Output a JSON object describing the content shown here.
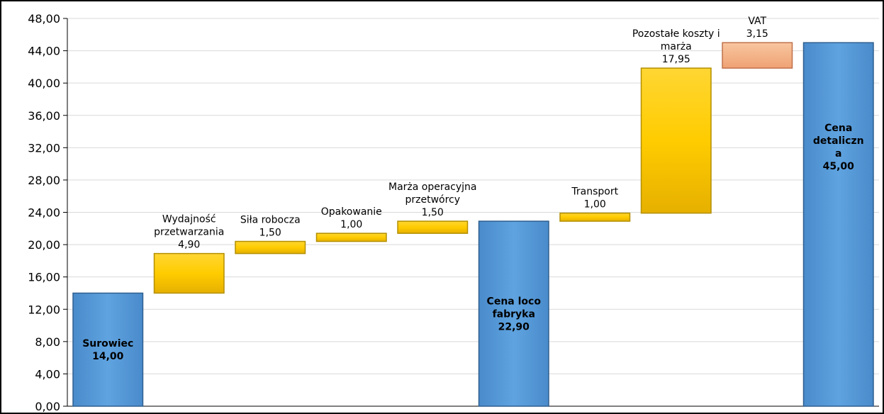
{
  "chart_data": {
    "type": "bar",
    "subtype": "waterfall",
    "title": "",
    "xlabel": "",
    "ylabel": "",
    "ylim": [
      0,
      48
    ],
    "ytick_step": 4,
    "ytick_labels": [
      "0,00",
      "4,00",
      "8,00",
      "12,00",
      "16,00",
      "20,00",
      "24,00",
      "28,00",
      "32,00",
      "36,00",
      "40,00",
      "44,00",
      "48,00"
    ],
    "grid": true,
    "legend": "none",
    "colors": {
      "total": "#5B9BD5",
      "increment": "#FFCC00",
      "tax": "#F4B183"
    },
    "categories": [
      "Surowiec",
      "Wydajność przetwarzania",
      "Siła robocza",
      "Opakowanie",
      "Marża operacyjna przetwórcy",
      "Cena loco fabryka",
      "Transport",
      "Pozostałe koszty i marża",
      "VAT",
      "Cena detaliczna"
    ],
    "bars": [
      {
        "kind": "total",
        "start": 0,
        "value": 14.0,
        "label_lines": [
          "Surowiec",
          "14,00"
        ],
        "label_pos": "inside"
      },
      {
        "kind": "increment",
        "start": 14.0,
        "value": 4.9,
        "label_lines": [
          "Wydajność",
          "przetwarzania",
          "4,90"
        ],
        "label_pos": "above"
      },
      {
        "kind": "increment",
        "start": 18.9,
        "value": 1.5,
        "label_lines": [
          "Siła robocza",
          "1,50"
        ],
        "label_pos": "above"
      },
      {
        "kind": "increment",
        "start": 20.4,
        "value": 1.0,
        "label_lines": [
          "Opakowanie",
          "1,00"
        ],
        "label_pos": "above"
      },
      {
        "kind": "increment",
        "start": 21.4,
        "value": 1.5,
        "label_lines": [
          "Marża operacyjna",
          "przetwórcy",
          "1,50"
        ],
        "label_pos": "above"
      },
      {
        "kind": "total",
        "start": 0,
        "value": 22.9,
        "label_lines": [
          "Cena loco",
          "fabryka",
          "22,90"
        ],
        "label_pos": "inside"
      },
      {
        "kind": "increment",
        "start": 22.9,
        "value": 1.0,
        "label_lines": [
          "Transport",
          "1,00"
        ],
        "label_pos": "above"
      },
      {
        "kind": "increment",
        "start": 23.9,
        "value": 17.95,
        "label_lines": [
          "Pozostałe koszty i",
          "marża",
          "17,95"
        ],
        "label_pos": "above"
      },
      {
        "kind": "tax",
        "start": 41.85,
        "value": 3.15,
        "label_lines": [
          "VAT",
          "3,15"
        ],
        "label_pos": "above"
      },
      {
        "kind": "total",
        "start": 0,
        "value": 45.0,
        "label_lines": [
          "Cena",
          "detaliczn",
          "a",
          "45,00"
        ],
        "label_pos": "inside-top"
      }
    ]
  }
}
